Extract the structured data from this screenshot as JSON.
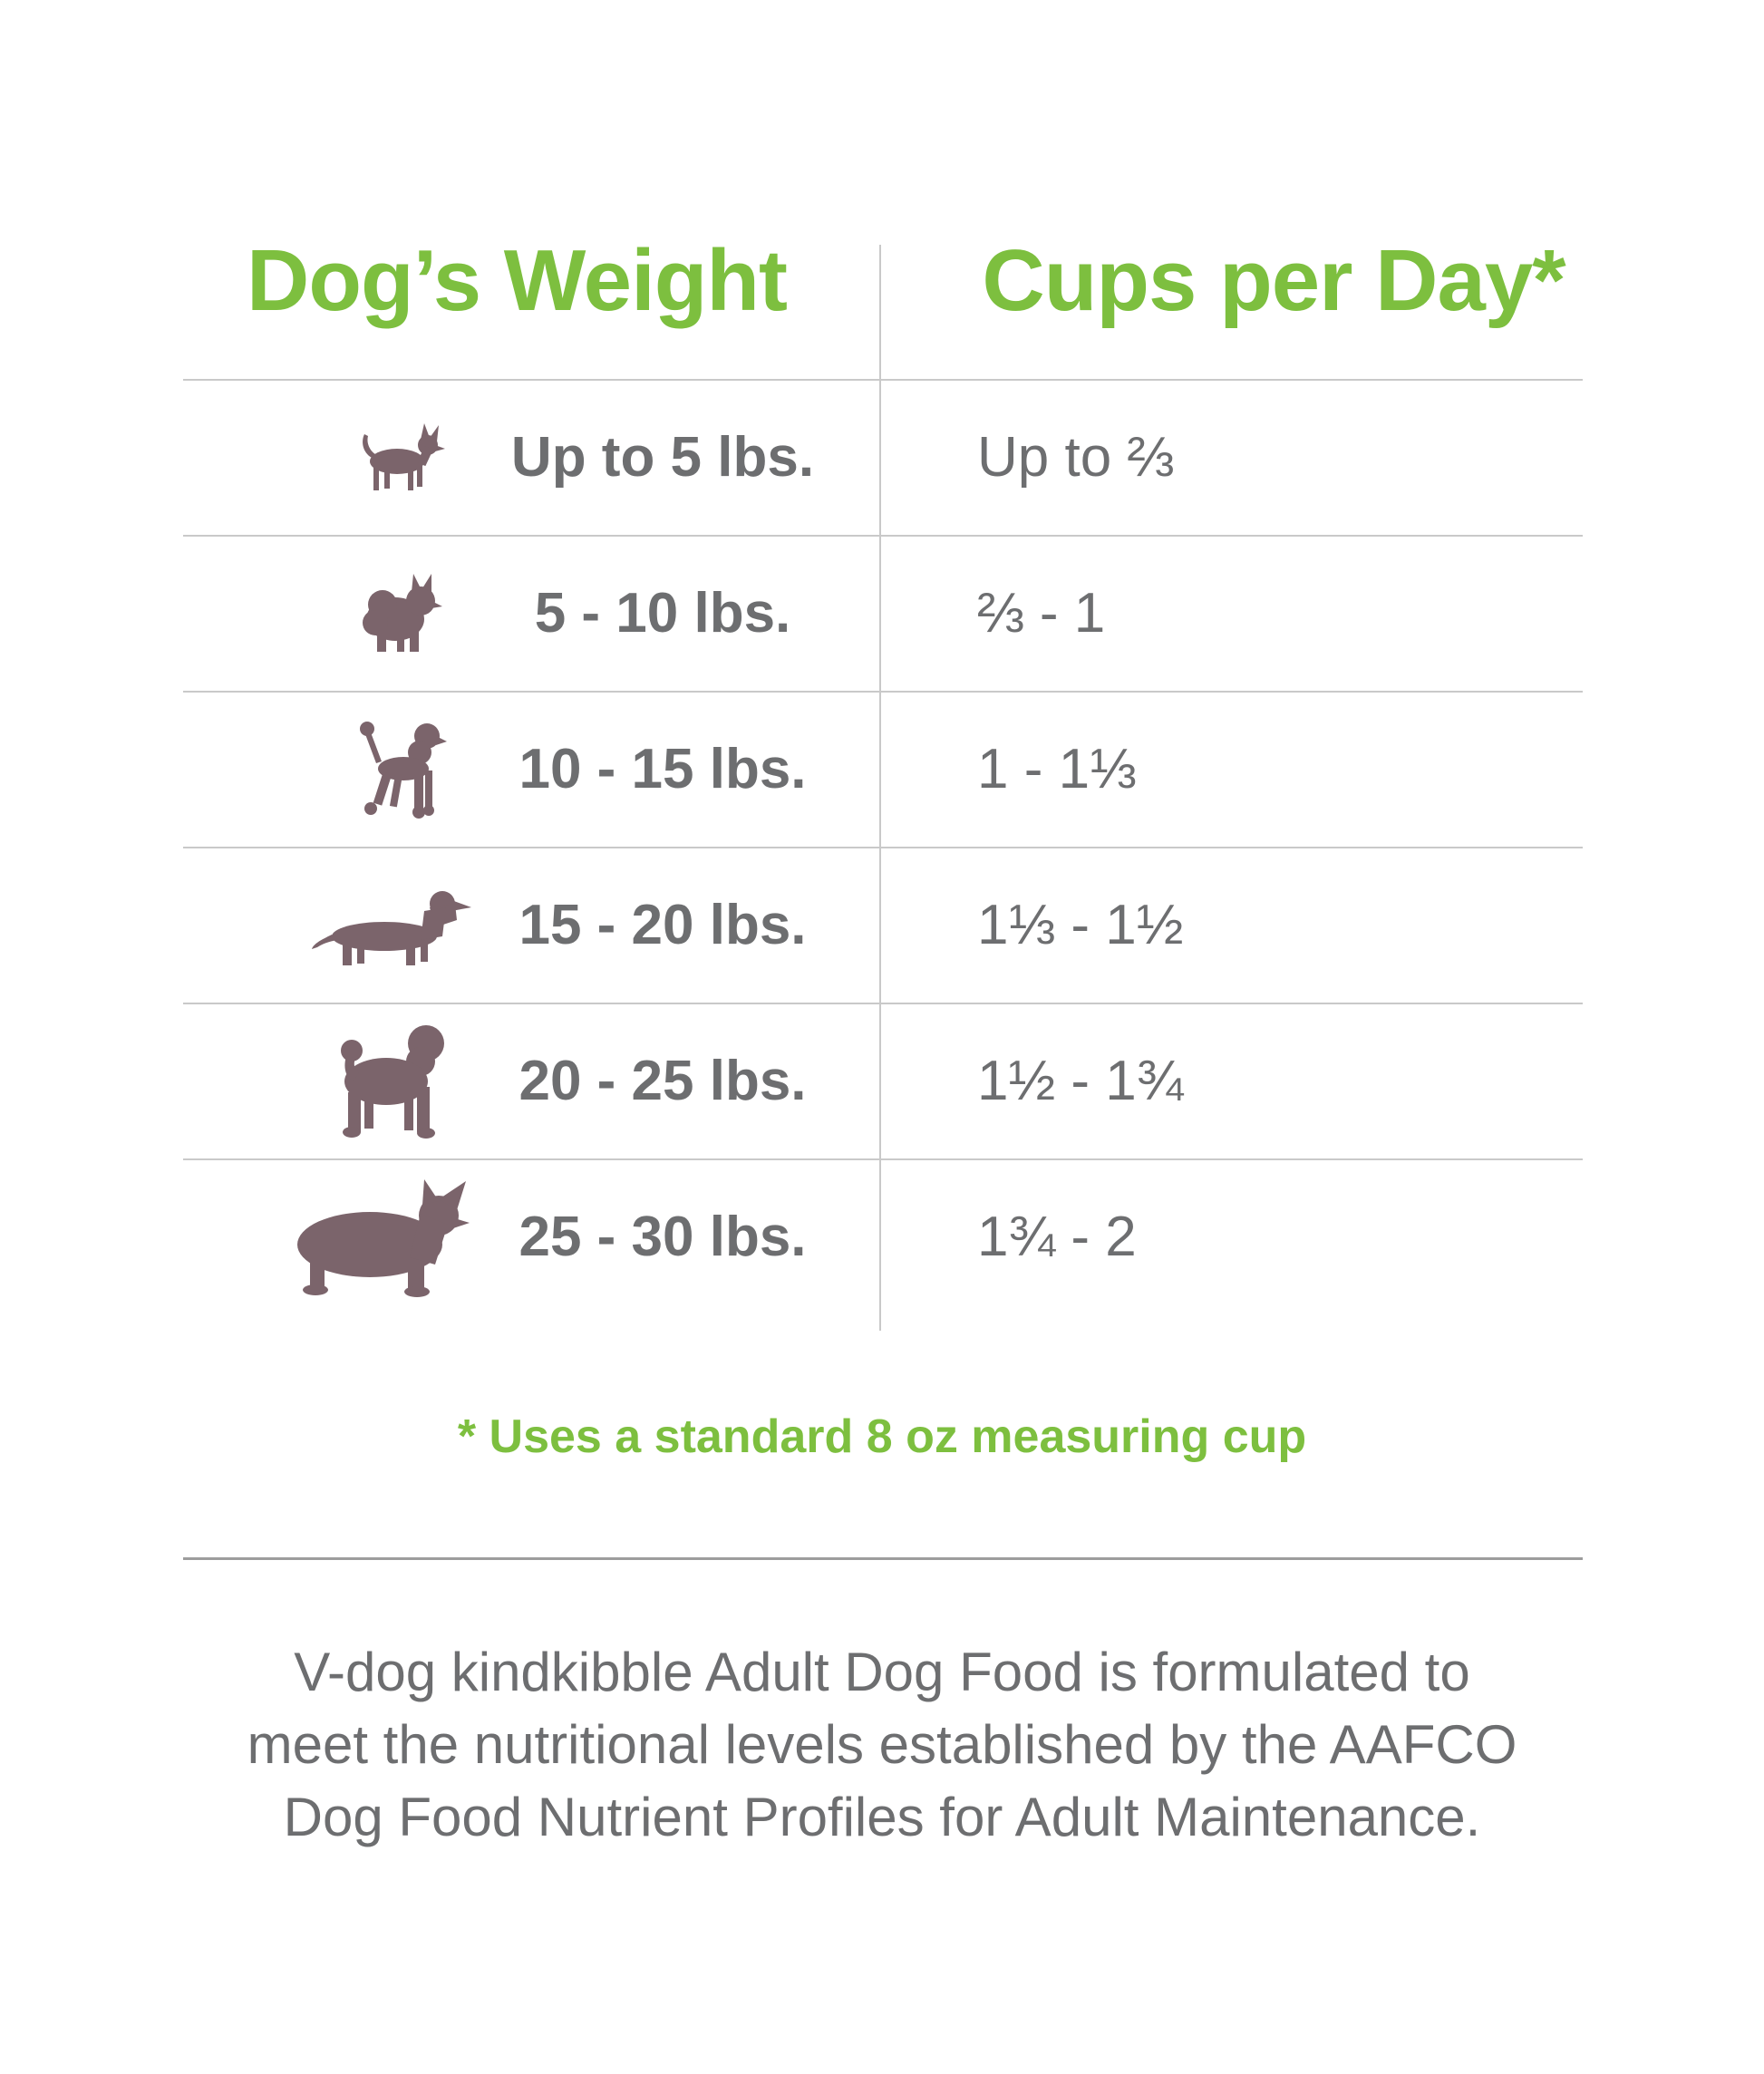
{
  "table": {
    "header_weight": "Dog’s Weight",
    "header_cups": "Cups per Day*",
    "rows": [
      {
        "weight": "Up to 5 lbs.",
        "cups": "Up to ⅔",
        "icon": "chihuahua-icon"
      },
      {
        "weight": "5 - 10 lbs.",
        "cups": "⅔ - 1",
        "icon": "pomeranian-icon"
      },
      {
        "weight": "10 - 15 lbs.",
        "cups": "1 - 1⅓",
        "icon": "poodle-icon"
      },
      {
        "weight": "15 - 20 lbs.",
        "cups": "1⅓ - 1½",
        "icon": "dachshund-icon"
      },
      {
        "weight": "20 - 25 lbs.",
        "cups": "1½ - 1¾",
        "icon": "pug-icon"
      },
      {
        "weight": "25 - 30 lbs.",
        "cups": "1¾ - 2",
        "icon": "corgi-icon"
      }
    ]
  },
  "footnote": "* Uses a standard 8 oz measuring cup",
  "description": {
    "line1": "V-dog kindkibble Adult Dog Food is formulated to",
    "line2": "meet the nutritional levels established by the AAFCO",
    "line3": "Dog Food Nutrient Profiles for Adult Maintenance."
  },
  "colors": {
    "accent_green": "#7dbf3f",
    "text_gray": "#6d6e70",
    "dog_silhouette": "#7b646b",
    "rule_gray": "#c9c9c9"
  }
}
